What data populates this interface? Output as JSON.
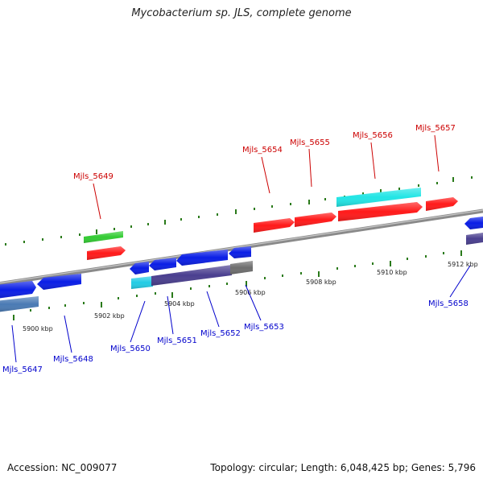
{
  "title": "Mycobacterium sp. JLS, complete genome",
  "footer": {
    "accession": "Accession: NC_009077",
    "summary": "Topology: circular; Length: 6,048,425 bp; Genes: 5,796"
  },
  "colors": {
    "forward_label": "#cc0000",
    "reverse_label": "#0000cc",
    "backbone": "#8a8a8a",
    "tick": "#2a7a1a"
  },
  "ticks": [
    {
      "kbp": 5900,
      "label": "5900 kbp"
    },
    {
      "kbp": 5902,
      "label": "5902 kbp"
    },
    {
      "kbp": 5904,
      "label": "5904 kbp"
    },
    {
      "kbp": 5906,
      "label": "5906 kbp"
    },
    {
      "kbp": 5908,
      "label": "5908 kbp"
    },
    {
      "kbp": 5910,
      "label": "5910 kbp"
    },
    {
      "kbp": 5912,
      "label": "5912 kbp"
    }
  ],
  "genes": [
    {
      "name": "Mjls_5647",
      "strand": "reverse"
    },
    {
      "name": "Mjls_5648",
      "strand": "reverse"
    },
    {
      "name": "Mjls_5649",
      "strand": "forward"
    },
    {
      "name": "Mjls_5650",
      "strand": "reverse"
    },
    {
      "name": "Mjls_5651",
      "strand": "reverse"
    },
    {
      "name": "Mjls_5652",
      "strand": "reverse"
    },
    {
      "name": "Mjls_5653",
      "strand": "reverse"
    },
    {
      "name": "Mjls_5654",
      "strand": "forward"
    },
    {
      "name": "Mjls_5655",
      "strand": "forward"
    },
    {
      "name": "Mjls_5656",
      "strand": "forward"
    },
    {
      "name": "Mjls_5657",
      "strand": "forward"
    },
    {
      "name": "Mjls_5658",
      "strand": "reverse"
    }
  ]
}
